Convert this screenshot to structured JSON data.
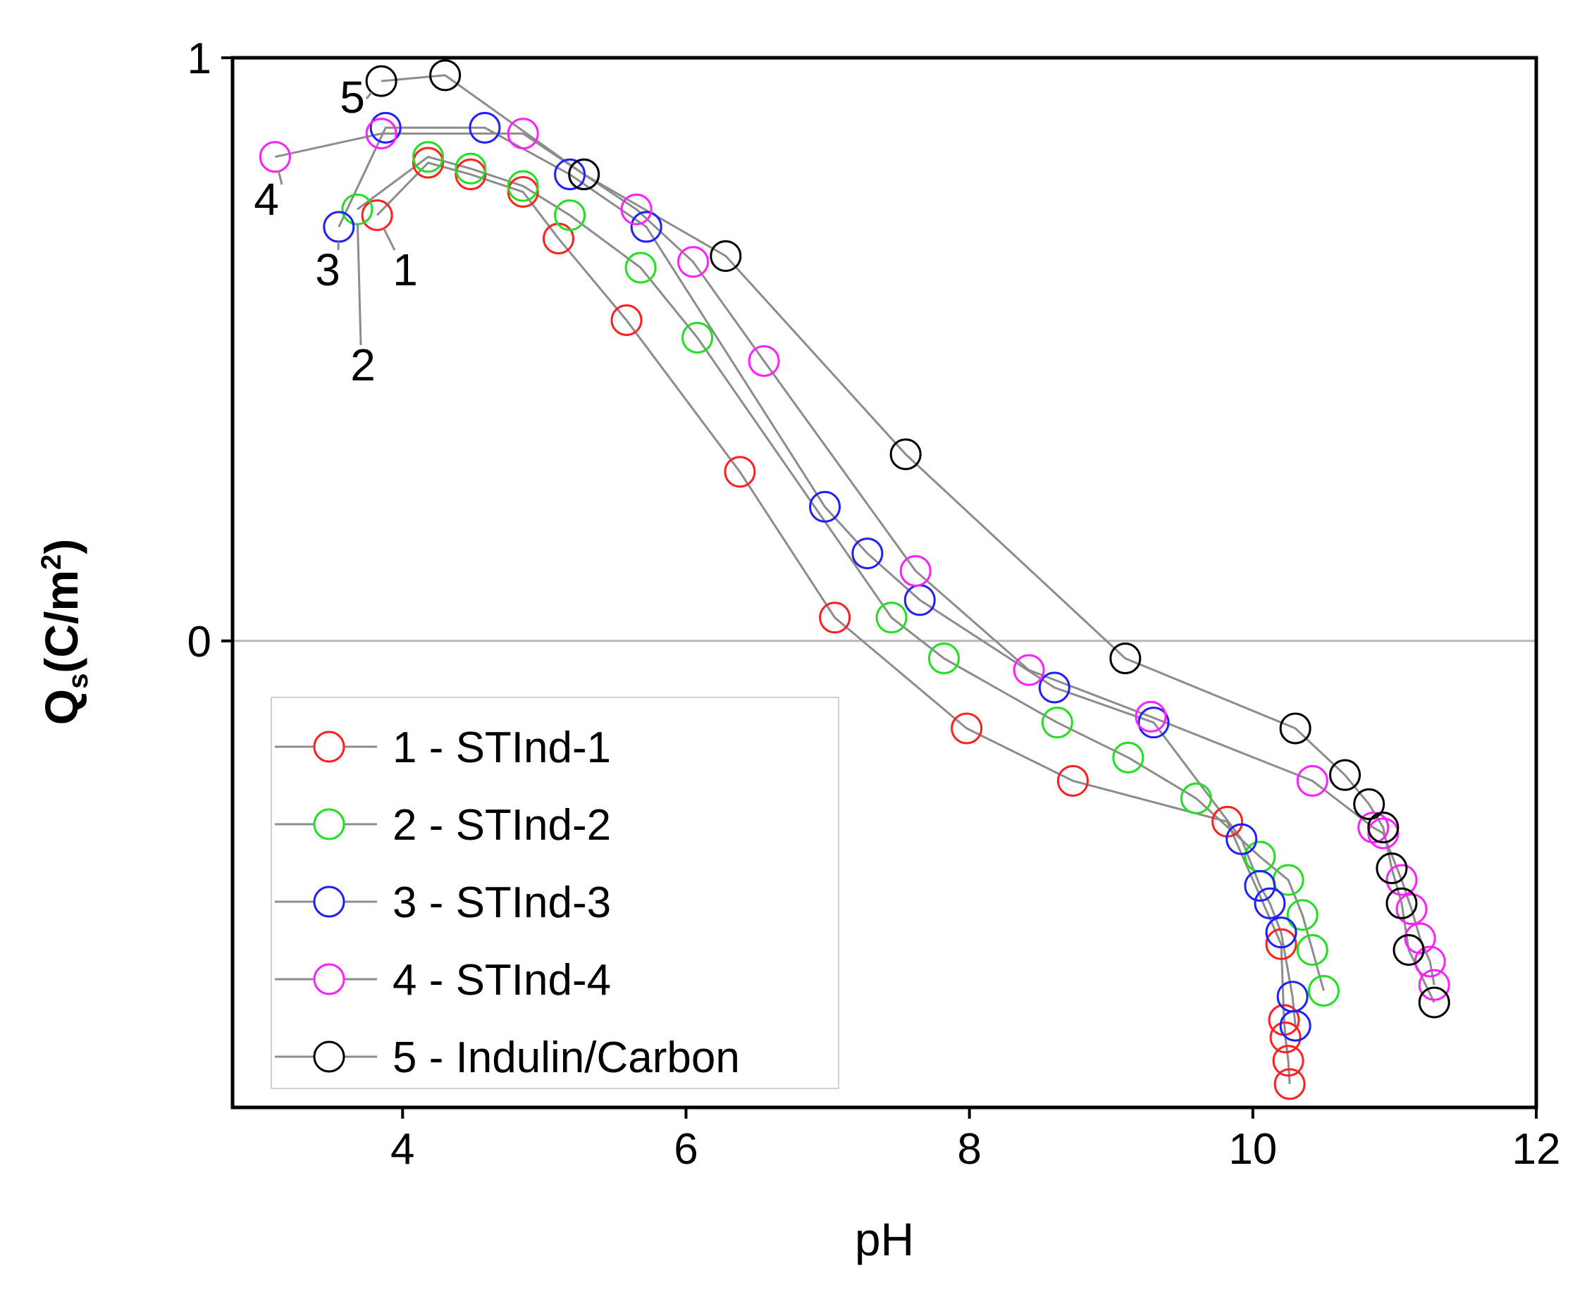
{
  "chart_data": {
    "type": "scatter",
    "title": "",
    "xlabel": "pH",
    "ylabel": "Q",
    "ylabel_subscript": "s",
    "ylabel_unit_prefix": "(C/m",
    "ylabel_unit_power": "2",
    "ylabel_unit_suffix": ")",
    "xlim": [
      2.8,
      12
    ],
    "ylim": [
      -0.8,
      1
    ],
    "x_ticks": [
      4,
      6,
      8,
      10,
      12
    ],
    "y_ticks": [
      0,
      1
    ],
    "zero_line": true,
    "legend_position": "bottom-left",
    "series": [
      {
        "name": "1 - STInd-1",
        "label": "1",
        "color": "#ff2020",
        "x": [
          3.82,
          4.18,
          4.48,
          4.85,
          5.1,
          5.58,
          6.38,
          7.05,
          7.98,
          8.73,
          9.82,
          10.2,
          10.22,
          10.23,
          10.25,
          10.26
        ],
        "y": [
          0.73,
          0.82,
          0.8,
          0.77,
          0.69,
          0.55,
          0.29,
          0.04,
          -0.15,
          -0.24,
          -0.31,
          -0.52,
          -0.65,
          -0.68,
          -0.72,
          -0.76
        ]
      },
      {
        "name": "2 - STInd-2",
        "label": "2",
        "color": "#20e020",
        "x": [
          3.68,
          4.18,
          4.48,
          4.85,
          5.18,
          5.68,
          6.08,
          7.45,
          7.82,
          8.62,
          9.12,
          9.6,
          10.05,
          10.25,
          10.35,
          10.42,
          10.5
        ],
        "y": [
          0.74,
          0.83,
          0.81,
          0.78,
          0.73,
          0.64,
          0.52,
          0.04,
          -0.03,
          -0.14,
          -0.2,
          -0.27,
          -0.37,
          -0.41,
          -0.47,
          -0.53,
          -0.6
        ]
      },
      {
        "name": "3 - STInd-3",
        "label": "3",
        "color": "#2020ff",
        "x": [
          3.55,
          3.88,
          4.58,
          5.18,
          5.72,
          6.98,
          7.28,
          7.65,
          8.6,
          9.3,
          9.92,
          10.05,
          10.12,
          10.2,
          10.28,
          10.3
        ],
        "y": [
          0.71,
          0.88,
          0.88,
          0.8,
          0.71,
          0.23,
          0.15,
          0.07,
          -0.08,
          -0.14,
          -0.34,
          -0.42,
          -0.45,
          -0.5,
          -0.61,
          -0.66
        ]
      },
      {
        "name": "4 - STInd-4",
        "label": "4",
        "color": "#ff20ff",
        "x": [
          3.1,
          3.85,
          4.85,
          5.28,
          5.65,
          6.05,
          6.55,
          7.62,
          8.42,
          9.28,
          10.42,
          10.85,
          10.92,
          11.05,
          11.12,
          11.18,
          11.25,
          11.28
        ],
        "y": [
          0.83,
          0.87,
          0.87,
          0.8,
          0.74,
          0.65,
          0.48,
          0.12,
          -0.05,
          -0.13,
          -0.24,
          -0.32,
          -0.33,
          -0.41,
          -0.46,
          -0.51,
          -0.55,
          -0.59
        ]
      },
      {
        "name": "5 - Indulin/Carbon",
        "label": "5",
        "color": "#000000",
        "x": [
          3.85,
          4.3,
          5.28,
          6.28,
          7.55,
          9.1,
          10.3,
          10.65,
          10.82,
          10.92,
          10.98,
          11.05,
          11.1,
          11.28
        ],
        "y": [
          0.96,
          0.97,
          0.8,
          0.66,
          0.32,
          -0.03,
          -0.15,
          -0.23,
          -0.28,
          -0.32,
          -0.39,
          -0.45,
          -0.53,
          -0.62
        ]
      }
    ]
  }
}
